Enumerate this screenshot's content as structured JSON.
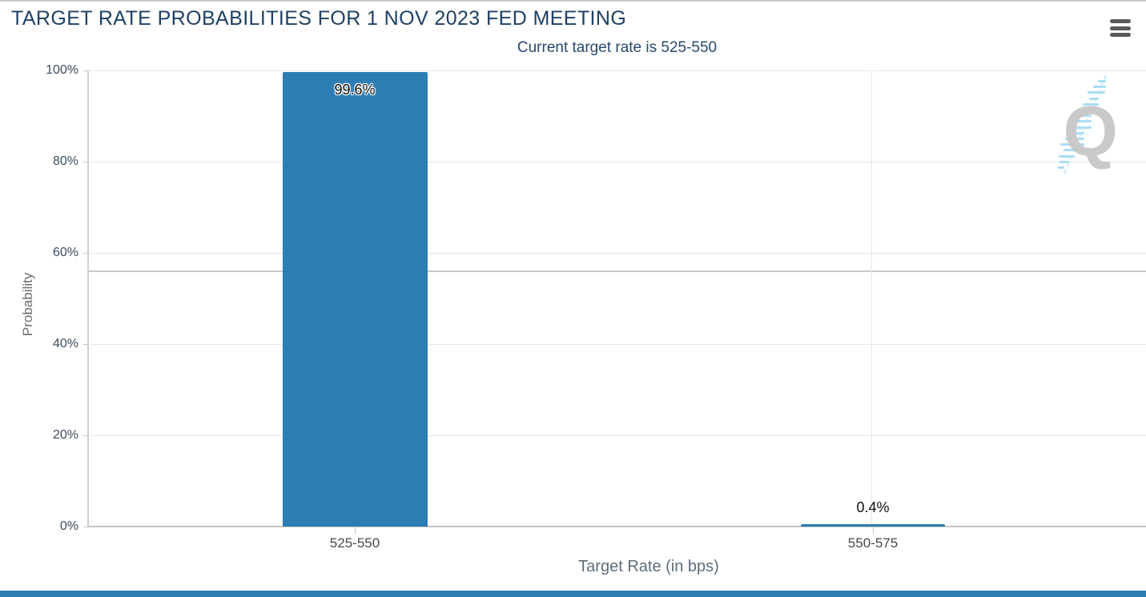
{
  "header": {
    "menu_icon": "hamburger-icon"
  },
  "chart_data": {
    "type": "bar",
    "title": "TARGET RATE PROBABILITIES FOR 1 NOV 2023 FED MEETING",
    "subtitle": "Current target rate is 525-550",
    "categories": [
      "525-550",
      "550-575"
    ],
    "values": [
      99.6,
      0.4
    ],
    "value_labels": [
      "99.6%",
      "0.4%"
    ],
    "xlabel": "Target Rate (in bps)",
    "ylabel": "Probability",
    "ylim": [
      0,
      100
    ],
    "ytick_labels": [
      "100%",
      "80%",
      "60%",
      "40%",
      "20%",
      "0%"
    ],
    "grid": true,
    "legend": false,
    "bar_color": "#2b7db3"
  },
  "watermark": {
    "letter": "Q"
  },
  "colors": {
    "title": "#1f4064",
    "subtitle": "#27496d",
    "bar": "#2b7db3",
    "footer_bar": "#2b7db3",
    "gridline": "#e6e6e6",
    "axis_line": "#c6c6c6",
    "menu_icon": "#58595b",
    "watermark_gray": "#c9c9c9",
    "watermark_blue": "#a8dcf1"
  }
}
